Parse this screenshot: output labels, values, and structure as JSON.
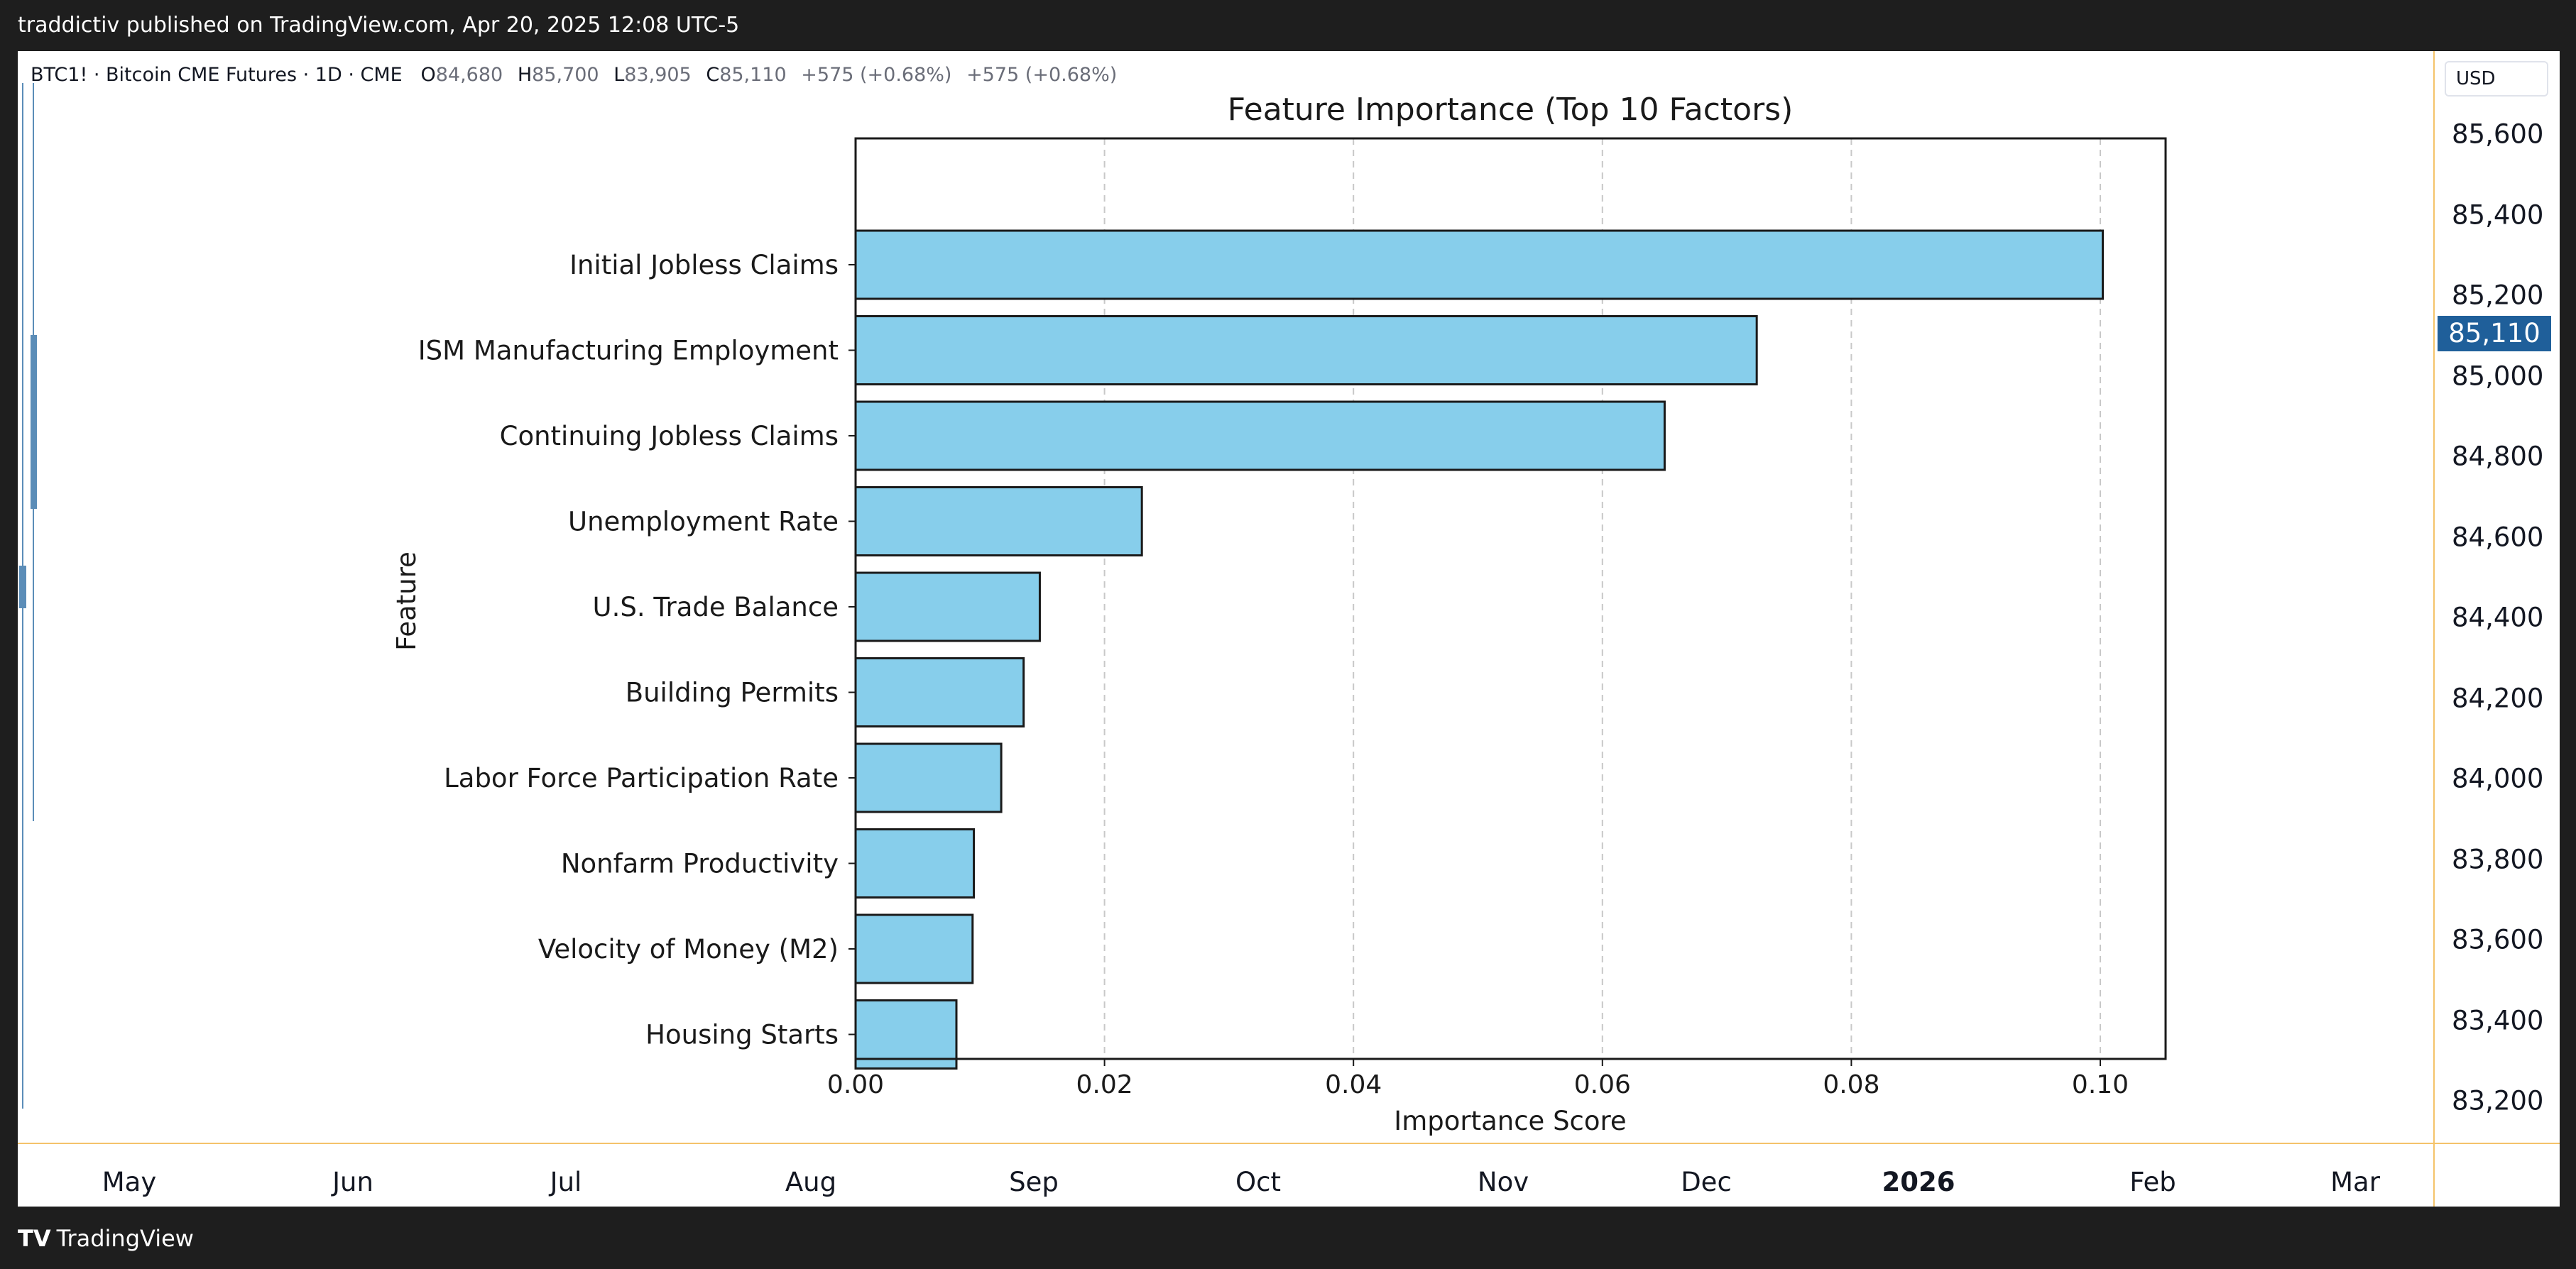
{
  "header": {
    "published_text": "traddictiv published on TradingView.com, Apr 20, 2025 12:08 UTC-5"
  },
  "legend": {
    "symbol": "BTC1! · Bitcoin CME Futures · 1D · CME",
    "o_label": "O",
    "o_value": "84,680",
    "h_label": "H",
    "h_value": "85,700",
    "l_label": "L",
    "l_value": "83,905",
    "c_label": "C",
    "c_value": "85,110",
    "change1": "+575 (+0.68%)",
    "change2": "+575 (+0.68%)"
  },
  "price_axis": {
    "currency": "USD",
    "ticks": [
      "85,600",
      "85,400",
      "85,200",
      "85,000",
      "84,800",
      "84,600",
      "84,400",
      "84,200",
      "84,000",
      "83,800",
      "83,600",
      "83,400",
      "83,200"
    ],
    "last_price": "85,110",
    "last_price_color": "#1f5f9a"
  },
  "time_axis": {
    "ticks": [
      {
        "label": "May",
        "bold": false
      },
      {
        "label": "Jun",
        "bold": false
      },
      {
        "label": "Jul",
        "bold": false
      },
      {
        "label": "Aug",
        "bold": false
      },
      {
        "label": "Sep",
        "bold": false
      },
      {
        "label": "Oct",
        "bold": false
      },
      {
        "label": "Nov",
        "bold": false
      },
      {
        "label": "Dec",
        "bold": false
      },
      {
        "label": "2026",
        "bold": true
      },
      {
        "label": "Feb",
        "bold": false
      },
      {
        "label": "Mar",
        "bold": false
      }
    ]
  },
  "footer": {
    "brand": "TradingView",
    "brand_icon": "tradingview-logo-icon"
  },
  "colors": {
    "bar_fill": "#87ceeb",
    "bar_edge": "#1a1a1a",
    "accent": "#f4c36a",
    "candle": "#5b8db8"
  },
  "chart_data": {
    "type": "bar",
    "orientation": "horizontal",
    "title": "Feature Importance (Top 10 Factors)",
    "xlabel": "Importance Score",
    "ylabel": "Feature",
    "xlim": [
      0,
      0.105
    ],
    "xticks": [
      "0.00",
      "0.02",
      "0.04",
      "0.06",
      "0.08",
      "0.10"
    ],
    "grid": "x-dashed",
    "categories": [
      "Initial Jobless Claims",
      "ISM Manufacturing Employment",
      "Continuing Jobless Claims",
      "Unemployment Rate",
      "U.S. Trade Balance",
      "Building Permits",
      "Labor Force Participation Rate",
      "Nonfarm Productivity",
      "Velocity of Money (M2)",
      "Housing Starts"
    ],
    "values": [
      0.1002,
      0.0724,
      0.065,
      0.023,
      0.0148,
      0.0135,
      0.0117,
      0.0095,
      0.0094,
      0.0081
    ]
  }
}
